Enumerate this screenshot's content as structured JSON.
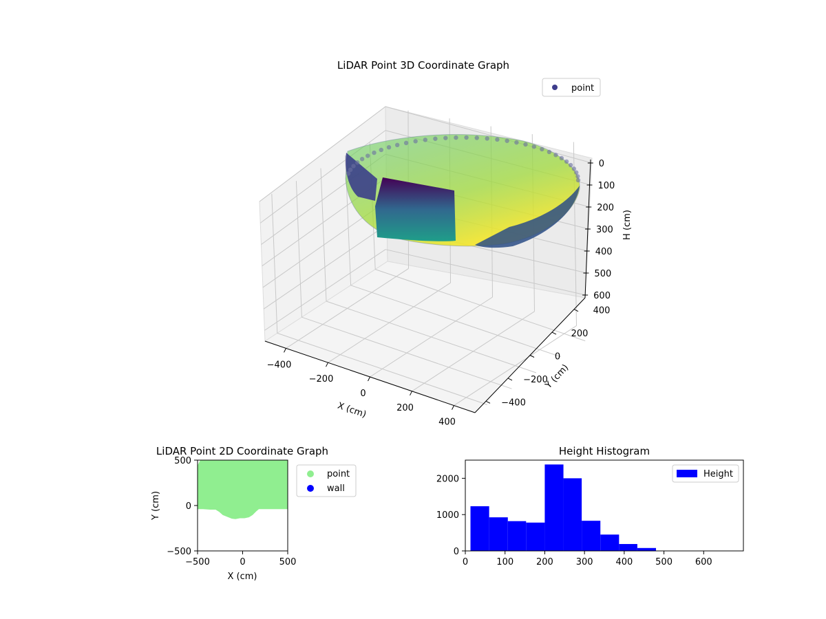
{
  "chart_data": [
    {
      "type": "scatter3d",
      "title": "LiDAR Point 3D Coordinate Graph",
      "xlabel": "X (cm)",
      "ylabel": "Y (cm)",
      "zlabel": "H (cm)",
      "legend": {
        "entries": [
          "point"
        ],
        "placement": "top-right"
      },
      "xticks": [
        -400,
        -200,
        0,
        200,
        400
      ],
      "yticks": [
        -400,
        -200,
        0,
        200,
        400
      ],
      "zticks": [
        0,
        100,
        200,
        300,
        400,
        500,
        600
      ],
      "xlim": [
        -500,
        500
      ],
      "ylim": [
        -500,
        500
      ],
      "zlim": [
        0,
        650
      ],
      "zinverted": true,
      "colormap": "viridis",
      "grid": true
    },
    {
      "type": "scatter",
      "title": "LiDAR Point 2D Coordinate Graph",
      "xlabel": "X (cm)",
      "ylabel": "Y (cm)",
      "xlim": [
        -500,
        500
      ],
      "ylim": [
        -500,
        500
      ],
      "xticks": [
        -500,
        0,
        500
      ],
      "yticks": [
        -500,
        0,
        500
      ],
      "legend": {
        "entries": [
          "point",
          "wall"
        ],
        "placement": "outside-right"
      },
      "series": [
        {
          "name": "point",
          "color": "#90ee90",
          "boundary": [
            [
              -500,
              -40
            ],
            [
              -440,
              -40
            ],
            [
              -360,
              -45
            ],
            [
              -300,
              -45
            ],
            [
              -260,
              -70
            ],
            [
              -220,
              -105
            ],
            [
              -170,
              -125
            ],
            [
              -120,
              -145
            ],
            [
              -80,
              -150
            ],
            [
              -30,
              -140
            ],
            [
              20,
              -140
            ],
            [
              70,
              -130
            ],
            [
              110,
              -105
            ],
            [
              150,
              -65
            ],
            [
              180,
              -40
            ],
            [
              260,
              -40
            ],
            [
              500,
              -40
            ],
            [
              500,
              500
            ],
            [
              -470,
              500
            ],
            [
              -500,
              440
            ]
          ]
        },
        {
          "name": "wall",
          "color": "#0000ff",
          "points": []
        }
      ]
    },
    {
      "type": "bar",
      "title": "Height Histogram",
      "legend": {
        "entries": [
          "Height"
        ],
        "placement": "top-right"
      },
      "xlim": [
        0,
        700
      ],
      "ylim": [
        0,
        2500
      ],
      "xticks": [
        0,
        100,
        200,
        300,
        400,
        500,
        600
      ],
      "yticks": [
        0,
        1000,
        2000
      ],
      "bin_edges": [
        13,
        60,
        107,
        153,
        200,
        247,
        293,
        340,
        387,
        433,
        480
      ],
      "series": [
        {
          "name": "Height",
          "color": "#0000ff",
          "values": [
            1230,
            925,
            820,
            780,
            2380,
            2000,
            830,
            450,
            190,
            80
          ]
        }
      ]
    }
  ]
}
